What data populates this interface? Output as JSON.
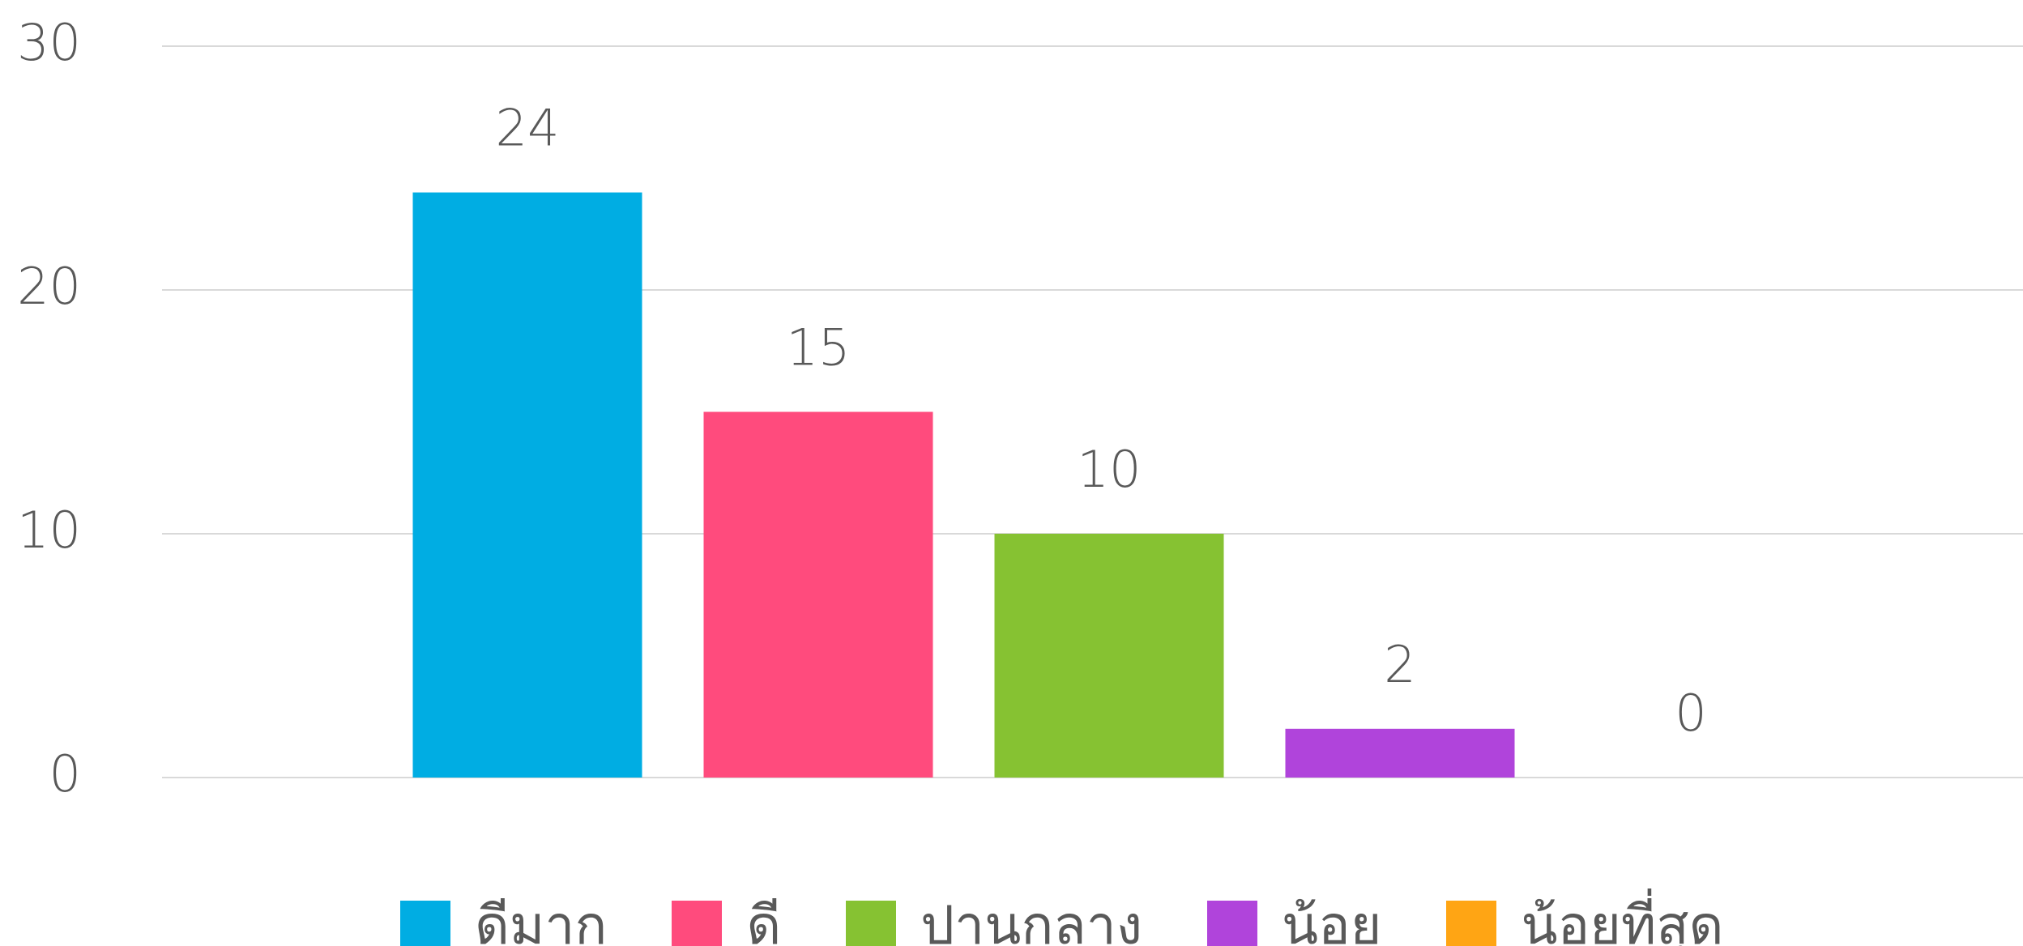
{
  "chart_data": {
    "type": "bar",
    "categories": [
      "ดีมาก",
      "ดี",
      "ปานกลาง",
      "น้อย",
      "น้อยที่สุด"
    ],
    "values": [
      24,
      15,
      10,
      2,
      0
    ],
    "colors": [
      "#00ade3",
      "#ff4b7d",
      "#86c232",
      "#b044db",
      "#ffa514"
    ],
    "ylim": [
      0,
      30
    ],
    "yticks": [
      0,
      10,
      20,
      30
    ],
    "grid": true,
    "legend": "bottom"
  }
}
